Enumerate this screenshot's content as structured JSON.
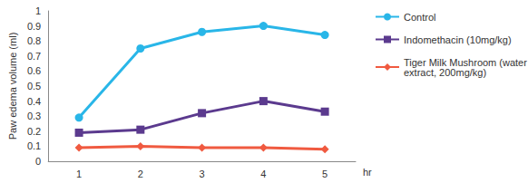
{
  "chart_data": {
    "type": "line",
    "y_label": "Paw edema volume (ml)",
    "x_label": "hr",
    "categories": [
      "1",
      "2",
      "3",
      "4",
      "5"
    ],
    "ylim": [
      0,
      1
    ],
    "yticks": [
      0,
      0.1,
      0.2,
      0.3,
      0.4,
      0.5,
      0.6,
      0.7,
      0.8,
      0.9,
      1
    ],
    "grid": false,
    "legend": "right",
    "series": [
      {
        "name": "Control",
        "color": "#29b6e8",
        "marker": "circle",
        "values": [
          0.29,
          0.75,
          0.86,
          0.9,
          0.84
        ]
      },
      {
        "name": "Indomethacin (10mg/kg)",
        "color": "#5b3a8e",
        "marker": "square",
        "values": [
          0.19,
          0.21,
          0.32,
          0.4,
          0.33
        ]
      },
      {
        "name": "Tiger Milk Mushroom (water extract, 200mg/kg)",
        "color": "#f05a40",
        "marker": "diamond",
        "values": [
          0.09,
          0.1,
          0.09,
          0.09,
          0.08
        ]
      }
    ]
  }
}
